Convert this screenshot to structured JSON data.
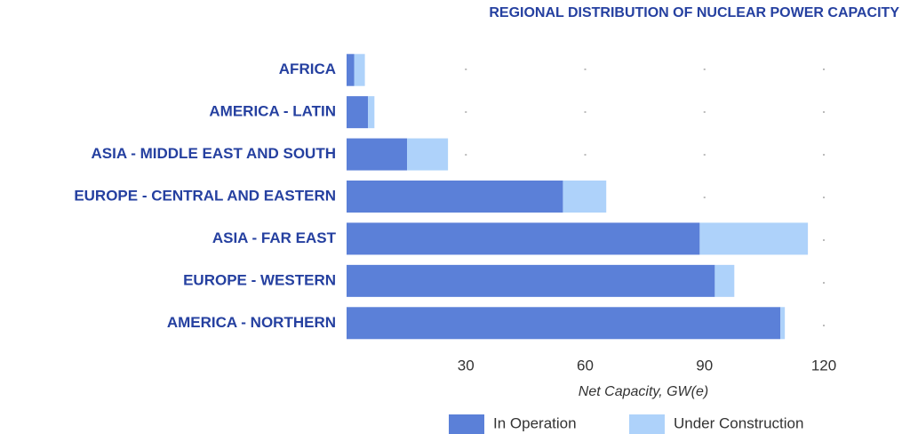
{
  "chart_data": {
    "type": "stacked-barh",
    "title": "REGIONAL DISTRIBUTION OF NUCLEAR POWER CAPACITY",
    "x_label": "Net Capacity, GW(e)",
    "categories": [
      "AFRICA",
      "AMERICA - LATIN",
      "ASIA - MIDDLE EAST AND SOUTH",
      "EUROPE - CENTRAL AND EASTERN",
      "ASIA - FAR EAST",
      "EUROPE - WESTERN",
      "AMERICA - NORTHERN"
    ],
    "series": [
      {
        "name": "In Operation",
        "color": "#5b80d8",
        "values": [
          1.9,
          5.4,
          15.2,
          54.4,
          88.8,
          92.6,
          109.1
        ]
      },
      {
        "name": "Under Construction",
        "color": "#aed2fa",
        "values": [
          2.7,
          1.6,
          10.3,
          10.9,
          27.2,
          4.9,
          1.1
        ]
      }
    ],
    "xlim": [
      0,
      120
    ],
    "xticks": [
      30,
      60,
      90,
      120
    ],
    "grid": true,
    "legend": "bottom"
  }
}
